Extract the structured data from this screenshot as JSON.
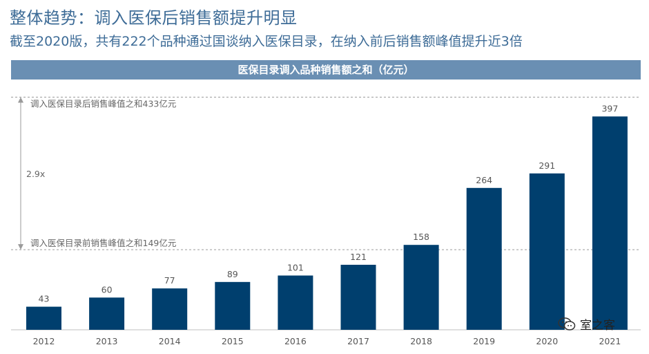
{
  "header": {
    "title": "整体趋势：调入医保后销售额提升明显",
    "subtitle": "截至2020版，共有222个品种通过国谈纳入医保目录，在纳入前后销售额峰值提升近3倍"
  },
  "chart_data": {
    "type": "bar",
    "title": "医保目录调入品种销售额之和（亿元）",
    "categories": [
      "2012",
      "2013",
      "2014",
      "2015",
      "2016",
      "2017",
      "2018",
      "2019",
      "2020",
      "2021"
    ],
    "values": [
      43,
      60,
      77,
      89,
      101,
      121,
      158,
      264,
      291,
      397
    ],
    "ylim": [
      0,
      440
    ],
    "grid": false,
    "bar_color": "#003f6e",
    "annotations": {
      "upper_label": "调入医保目录后销售峰值之和433亿元",
      "upper_value": 433,
      "lower_label": "调入医保目录前销售峰值之和149亿元",
      "lower_value": 149,
      "ratio_label": "2.9x"
    }
  },
  "watermark": {
    "text": "室之客",
    "icon": "wechat-icon"
  }
}
